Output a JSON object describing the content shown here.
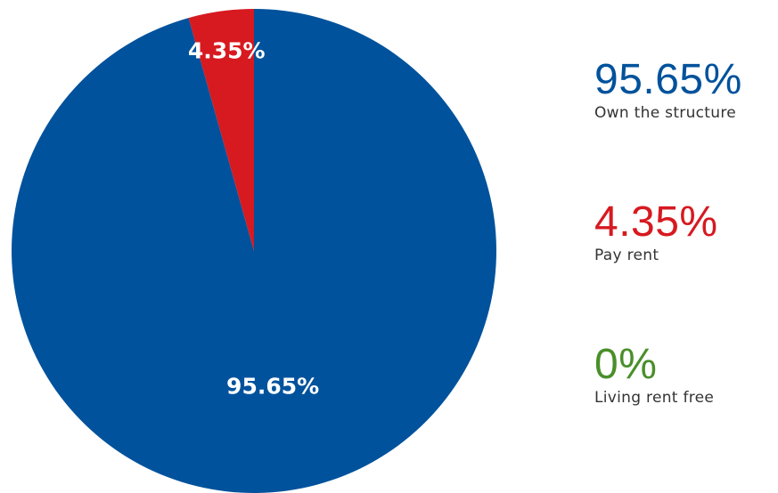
{
  "chart_data": {
    "type": "pie",
    "slices": [
      {
        "label": "Own the structure",
        "value": 95.65,
        "display": "95.65%",
        "color": "#00529c"
      },
      {
        "label": "Pay rent",
        "value": 4.35,
        "display": "4.35%",
        "color": "#d71920"
      },
      {
        "label": "Living rent free",
        "value": 0,
        "display": "0%",
        "color": "#4a8f2a"
      }
    ]
  }
}
